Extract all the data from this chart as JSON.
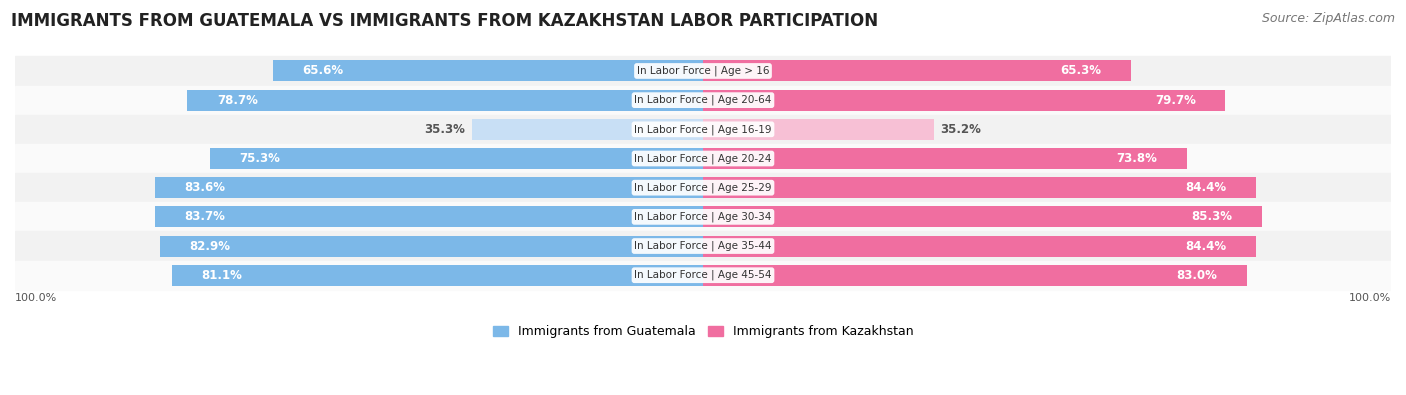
{
  "title": "IMMIGRANTS FROM GUATEMALA VS IMMIGRANTS FROM KAZAKHSTAN LABOR PARTICIPATION",
  "source": "Source: ZipAtlas.com",
  "categories": [
    "In Labor Force | Age > 16",
    "In Labor Force | Age 20-64",
    "In Labor Force | Age 16-19",
    "In Labor Force | Age 20-24",
    "In Labor Force | Age 25-29",
    "In Labor Force | Age 30-34",
    "In Labor Force | Age 35-44",
    "In Labor Force | Age 45-54"
  ],
  "guatemala_values": [
    65.6,
    78.7,
    35.3,
    75.3,
    83.6,
    83.7,
    82.9,
    81.1
  ],
  "kazakhstan_values": [
    65.3,
    79.7,
    35.2,
    73.8,
    84.4,
    85.3,
    84.4,
    83.0
  ],
  "max_value": 100.0,
  "guatemala_color": "#7CB8E8",
  "kazakhstan_color": "#F06EA0",
  "guatemala_color_light": "#C8DFF5",
  "kazakhstan_color_light": "#F7C0D5",
  "row_bg_even": "#F2F2F2",
  "row_bg_odd": "#FAFAFA",
  "text_dark": "#555555",
  "text_white": "#FFFFFF",
  "title_fontsize": 12,
  "source_fontsize": 9,
  "bar_label_fontsize": 8.5,
  "category_label_fontsize": 7.5,
  "legend_fontsize": 9,
  "threshold_light": 50
}
